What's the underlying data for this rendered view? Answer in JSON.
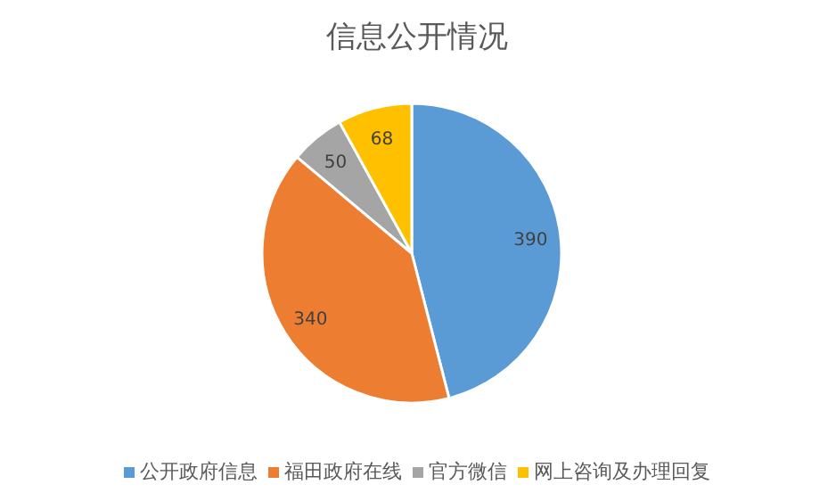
{
  "chart_data": {
    "type": "pie",
    "title": "信息公开情况",
    "categories": [
      "公开政府信息",
      "福田政府在线",
      "官方微信",
      "网上咨询及办理回复"
    ],
    "values": [
      390,
      340,
      50,
      68
    ],
    "colors": [
      "#5b9bd5",
      "#ed7d31",
      "#a5a5a5",
      "#ffc000"
    ],
    "data_labels": true,
    "legend": "bottom"
  }
}
